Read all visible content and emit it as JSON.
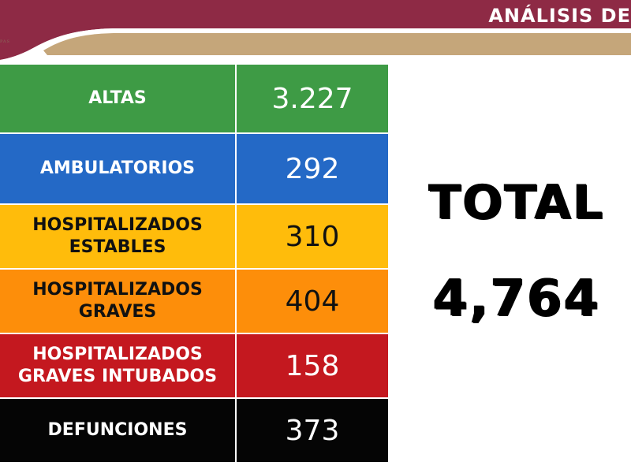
{
  "header": {
    "title": "ANÁLISIS DE",
    "logo_text": "PAS"
  },
  "colors": {
    "header_maroon": "#8e2a45",
    "header_gold": "#c5a67a",
    "altas": "#3e9b45",
    "ambulatorios": "#2469c6",
    "estables": "#ffbc0b",
    "graves": "#fd8e0a",
    "intubados": "#c4181f",
    "defunciones": "#050505"
  },
  "table": {
    "rows": [
      {
        "label": "ALTAS",
        "value": "3.227"
      },
      {
        "label": "AMBULATORIOS",
        "value": "292"
      },
      {
        "label": "HOSPITALIZADOS\nESTABLES",
        "value": "310"
      },
      {
        "label": "HOSPITALIZADOS\nGRAVES",
        "value": "404"
      },
      {
        "label": "HOSPITALIZADOS\nGRAVES INTUBADOS",
        "value": "158"
      },
      {
        "label": "DEFUNCIONES",
        "value": "373"
      }
    ]
  },
  "total": {
    "label": "TOTAL",
    "value": "4,764"
  }
}
